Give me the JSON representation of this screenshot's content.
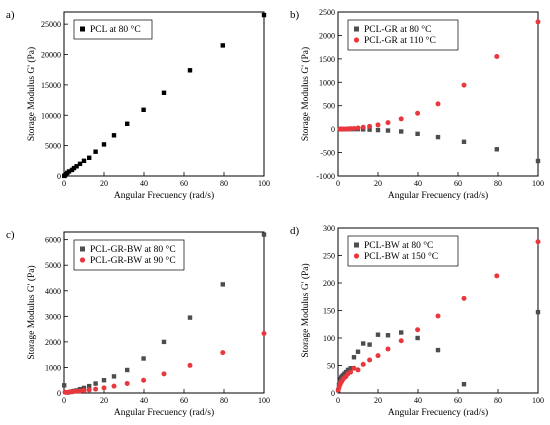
{
  "chart_data": [
    {
      "type": "scatter",
      "panel": "a)",
      "xlabel": "Angular Frecuency (rad/s)",
      "ylabel": "Storage Modulus G' (Pa)",
      "xlim": [
        0,
        100
      ],
      "ylim": [
        0,
        27000
      ],
      "xticks": [
        0,
        20,
        40,
        60,
        80,
        100
      ],
      "yticks": [
        0,
        5000,
        10000,
        15000,
        20000,
        25000
      ],
      "legend_position": "top-left",
      "series": [
        {
          "name": "PCL at 80 °C",
          "marker": "square",
          "color": "#000000",
          "x": [
            0.1,
            0.5,
            1,
            1.6,
            2.5,
            4,
            5,
            6.3,
            8,
            10,
            12.6,
            15.8,
            20,
            25,
            31.6,
            39.8,
            50,
            63,
            79.4,
            100
          ],
          "y": [
            10,
            100,
            300,
            500,
            750,
            1000,
            1300,
            1600,
            2000,
            2500,
            3000,
            4000,
            5200,
            6700,
            8600,
            10900,
            13700,
            17400,
            21500,
            26500
          ]
        }
      ]
    },
    {
      "type": "scatter",
      "panel": "b)",
      "xlabel": "Angular Frecuency (rad/s)",
      "ylabel": "Storage Modulus G' (Pa)",
      "xlim": [
        0,
        100
      ],
      "ylim": [
        -1000,
        2500
      ],
      "xticks": [
        0,
        20,
        40,
        60,
        80,
        100
      ],
      "yticks": [
        -1000,
        -500,
        0,
        500,
        1000,
        1500,
        2000,
        2500
      ],
      "legend_position": "top-left",
      "series": [
        {
          "name": "PCL-GR at 80 °C",
          "marker": "square",
          "color": "#4d4d4d",
          "x": [
            1,
            1.3,
            1.6,
            2,
            2.5,
            3.2,
            4,
            5,
            6.3,
            8,
            10,
            12.6,
            15.8,
            20,
            25,
            31.6,
            39.8,
            50,
            63,
            79.4,
            100
          ],
          "y": [
            0,
            0,
            0,
            0,
            0,
            0,
            0,
            0,
            0,
            0,
            0,
            -5,
            -10,
            -20,
            -30,
            -50,
            -100,
            -170,
            -270,
            -430,
            -680
          ]
        },
        {
          "name": "PCL-GR at 110 °C",
          "marker": "circle",
          "color": "#e8383d",
          "x": [
            1,
            1.3,
            1.6,
            2,
            2.5,
            3.2,
            4,
            5,
            6.3,
            8,
            10,
            12.6,
            15.8,
            20,
            25,
            31.6,
            39.8,
            50,
            63,
            79.4,
            100
          ],
          "y": [
            0,
            0,
            0,
            0,
            0,
            0,
            0,
            5,
            10,
            15,
            25,
            40,
            60,
            90,
            140,
            220,
            340,
            540,
            940,
            1550,
            2290
          ]
        }
      ]
    },
    {
      "type": "scatter",
      "panel": "c)",
      "xlabel": "Angular Frecuency (rad/s)",
      "ylabel": "Storage Modulus G' (Pa)",
      "xlim": [
        0,
        100
      ],
      "ylim": [
        0,
        6300
      ],
      "xticks": [
        0,
        20,
        40,
        60,
        80,
        100
      ],
      "yticks": [
        0,
        1000,
        2000,
        3000,
        4000,
        5000,
        6000
      ],
      "legend_position": "top-left",
      "series": [
        {
          "name": "PCL-GR-BW at 80 °C",
          "marker": "square",
          "color": "#4d4d4d",
          "x": [
            0.1,
            2,
            3.2,
            4,
            5,
            6.3,
            8,
            10,
            12.6,
            15.8,
            20,
            25,
            31.6,
            39.8,
            50,
            63,
            79.4,
            100
          ],
          "y": [
            300,
            20,
            40,
            60,
            80,
            100,
            150,
            200,
            270,
            370,
            500,
            650,
            900,
            1350,
            2000,
            2950,
            4250,
            6200
          ]
        },
        {
          "name": "PCL-GR-BW at 90 °C",
          "marker": "circle",
          "color": "#e8383d",
          "x": [
            0.5,
            1.6,
            2.5,
            4,
            5,
            6.3,
            8,
            10,
            12.6,
            15.8,
            20,
            25,
            31.6,
            39.8,
            50,
            63,
            79.4,
            100
          ],
          "y": [
            30,
            20,
            40,
            50,
            60,
            70,
            80,
            100,
            120,
            150,
            200,
            270,
            370,
            500,
            750,
            1080,
            1580,
            2330
          ]
        }
      ]
    },
    {
      "type": "scatter",
      "panel": "d)",
      "xlabel": "Angular Frecuency (rad/s)",
      "ylabel": "Storage Modulus G' (Pa)",
      "xlim": [
        0,
        100
      ],
      "ylim": [
        0,
        300
      ],
      "xticks": [
        0,
        20,
        40,
        60,
        80,
        100
      ],
      "yticks": [
        0,
        50,
        100,
        150,
        200,
        250,
        300
      ],
      "legend_position": "top-left",
      "series": [
        {
          "name": "PCL-BW at 80 °C",
          "marker": "square",
          "color": "#4d4d4d",
          "x": [
            0.1,
            0.5,
            1,
            1.3,
            1.6,
            2,
            2.5,
            3.2,
            4,
            5,
            6.3,
            8,
            10,
            12.6,
            15.8,
            20,
            25,
            31.6,
            39.8,
            50,
            63,
            100
          ],
          "y": [
            5,
            15,
            20,
            25,
            28,
            30,
            32,
            35,
            38,
            42,
            45,
            65,
            75,
            90,
            88,
            106,
            105,
            110,
            100,
            78,
            16,
            147
          ]
        },
        {
          "name": "PCL-BW at 150 °C",
          "marker": "circle",
          "color": "#e8383d",
          "x": [
            0.1,
            0.5,
            1,
            1.3,
            1.6,
            2,
            2.5,
            3.2,
            4,
            5,
            6.3,
            8,
            10,
            12.6,
            15.8,
            20,
            25,
            31.6,
            39.8,
            50,
            63,
            79.4,
            100
          ],
          "y": [
            5,
            10,
            15,
            18,
            20,
            22,
            25,
            28,
            30,
            35,
            38,
            45,
            42,
            52,
            60,
            68,
            80,
            95,
            115,
            140,
            172,
            213,
            275
          ]
        }
      ]
    }
  ]
}
